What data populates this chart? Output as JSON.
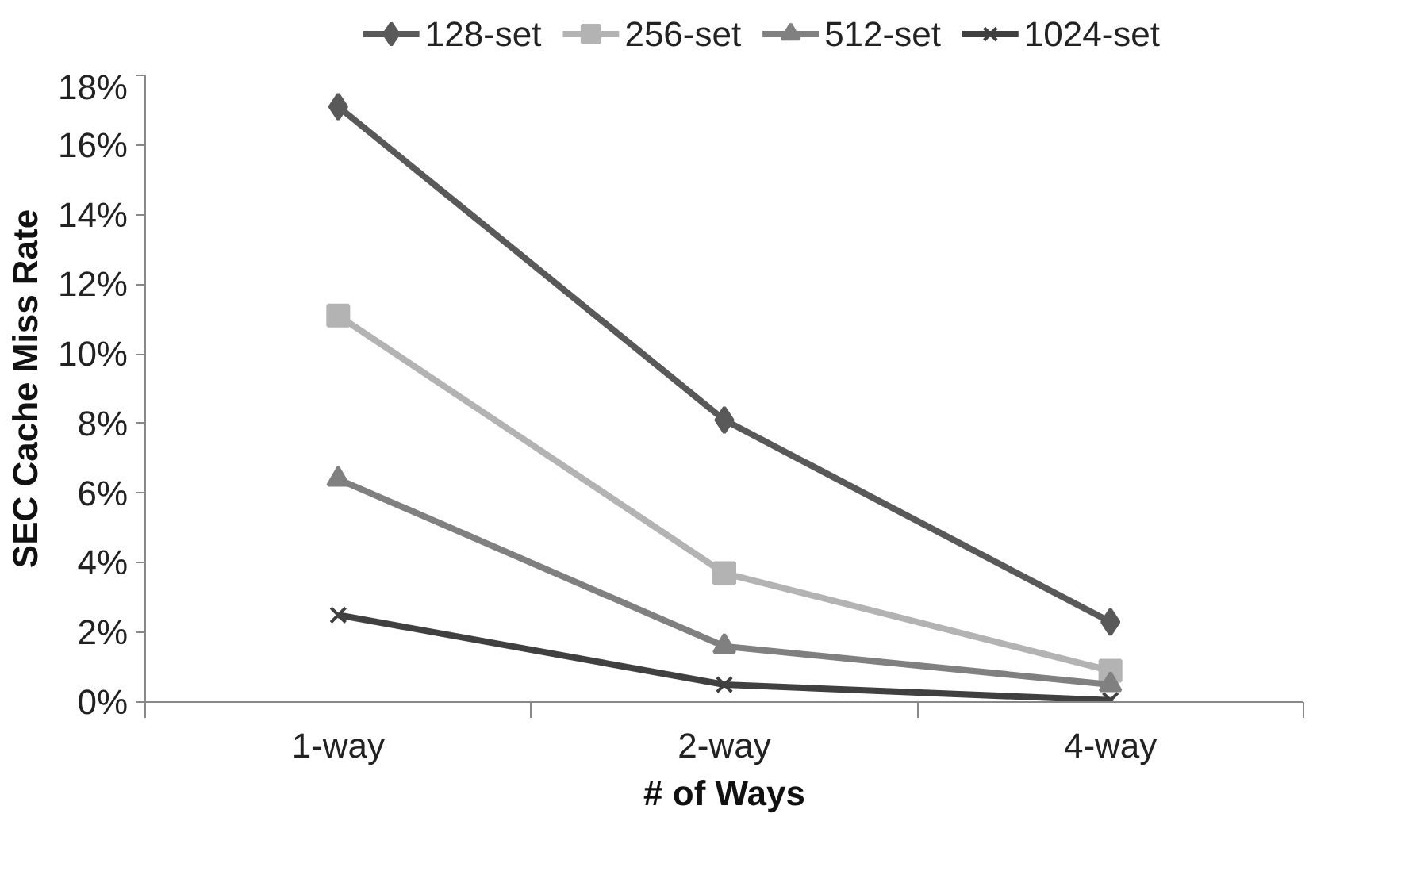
{
  "chart_data": {
    "type": "line",
    "xlabel": "# of Ways",
    "ylabel": "SEC Cache Miss Rate",
    "categories": [
      "1-way",
      "2-way",
      "4-way"
    ],
    "series": [
      {
        "name": "128-set",
        "color": "#595959",
        "marker": "diamond",
        "values": [
          17.1,
          8.1,
          2.3
        ]
      },
      {
        "name": "256-set",
        "color": "#b3b3b3",
        "marker": "square",
        "values": [
          11.1,
          3.7,
          0.9
        ]
      },
      {
        "name": "512-set",
        "color": "#808080",
        "marker": "triangle",
        "values": [
          6.4,
          1.6,
          0.5
        ]
      },
      {
        "name": "1024-set",
        "color": "#404040",
        "marker": "cross",
        "values": [
          2.5,
          0.5,
          0.05
        ]
      }
    ],
    "ylim": [
      0,
      18
    ],
    "yticks": [
      {
        "value": 0,
        "label": "0%"
      },
      {
        "value": 2,
        "label": "2%"
      },
      {
        "value": 4,
        "label": "4%"
      },
      {
        "value": 6,
        "label": "6%"
      },
      {
        "value": 8,
        "label": "8%"
      },
      {
        "value": 10,
        "label": "10%"
      },
      {
        "value": 12,
        "label": "12%"
      },
      {
        "value": 14,
        "label": "14%"
      },
      {
        "value": 16,
        "label": "16%"
      },
      {
        "value": 18,
        "label": "18%"
      }
    ],
    "grid": false,
    "legend": "top",
    "line_style": "solid"
  }
}
